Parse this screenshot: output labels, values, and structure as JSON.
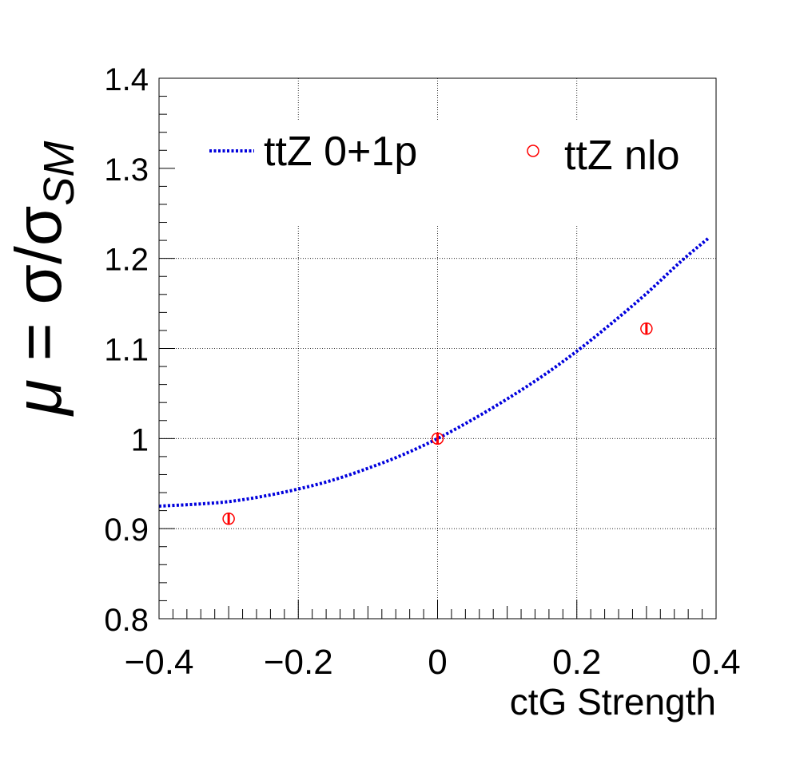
{
  "chart_data": {
    "type": "line",
    "xlabel": "ctG Strength",
    "ylabel_mu": "μ",
    "ylabel_rest": " = σ/σ",
    "ylabel_sub": "SM",
    "xlim": [
      -0.4,
      0.4
    ],
    "ylim": [
      0.8,
      1.4
    ],
    "x_ticks": [
      -0.4,
      -0.2,
      0,
      0.2,
      0.4
    ],
    "x_tick_labels": [
      "−0.4",
      "−0.2",
      "0",
      "0.2",
      "0.4"
    ],
    "y_ticks": [
      0.8,
      0.9,
      1.0,
      1.1,
      1.2,
      1.3,
      1.4
    ],
    "y_tick_labels": [
      "0.8",
      "0.9",
      "1",
      "1.1",
      "1.2",
      "1.3",
      "1.4"
    ],
    "grid": true,
    "legend_placement": "top",
    "series": [
      {
        "name": "ttZ 0+1p",
        "style": "dotted-curve",
        "color": "#0000dd",
        "x": [
          -0.4,
          -0.35,
          -0.3,
          -0.25,
          -0.2,
          -0.15,
          -0.1,
          -0.05,
          0.0,
          0.05,
          0.1,
          0.15,
          0.2,
          0.25,
          0.3,
          0.35,
          0.39
        ],
        "y": [
          0.925,
          0.927,
          0.93,
          0.936,
          0.944,
          0.954,
          0.967,
          0.982,
          1.0,
          1.021,
          1.044,
          1.069,
          1.097,
          1.128,
          1.161,
          1.197,
          1.223
        ]
      },
      {
        "name": "ttZ nlo",
        "style": "open-circle-markers",
        "color": "#ff0000",
        "x": [
          -0.3,
          0.0,
          0.3
        ],
        "y": [
          0.911,
          1.0,
          1.122
        ],
        "err": [
          0.006,
          0.006,
          0.006
        ]
      }
    ]
  }
}
